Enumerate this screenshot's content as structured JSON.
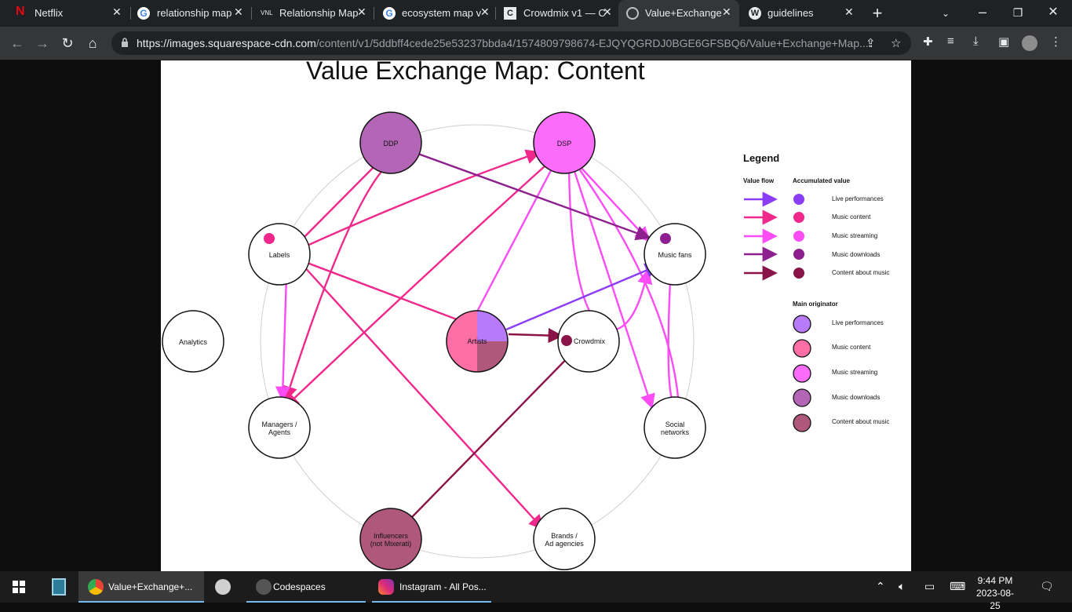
{
  "tabs": [
    {
      "title": "Netflix",
      "icon": "netflix-icon"
    },
    {
      "title": "relationship map",
      "icon": "google-icon"
    },
    {
      "title": "Relationship Map",
      "icon": "vnl-icon",
      "prefix": "VNL"
    },
    {
      "title": "ecosystem map v",
      "icon": "google-icon"
    },
    {
      "title": "Crowdmix v1 — C",
      "icon": "crowdmix-icon"
    },
    {
      "title": "Value+Exchange",
      "icon": "globe-icon",
      "active": true
    },
    {
      "title": "guidelines",
      "icon": "wordpress-icon"
    }
  ],
  "address": {
    "domain": "https://images.squarespace-cdn.com",
    "path": "/content/v1/5ddbff4cede25e53237bbda4/1574809798674-EJQYQGRDJ0BGE6GFSBQ6/Value+Exchange+Map..."
  },
  "diagram": {
    "title": "Value Exchange Map: Content",
    "nodes": {
      "ddp": "DDP",
      "dsp": "DSP",
      "labels": "Labels",
      "music_fans": "Music fans",
      "analytics": "Analytics",
      "artists": "Artists",
      "crowdmix": "Crowdmix",
      "managers_1": "Managers /",
      "managers_2": "Agents",
      "social_1": "Social",
      "social_2": "networks",
      "influencers_1": "Influencers",
      "influencers_2": "(not Mixerati)",
      "brands_1": "Brands /",
      "brands_2": "Ad agencies"
    },
    "colors": {
      "live": "#8b3cf7",
      "content": "#f0288c",
      "streaming": "#fb4cf5",
      "downloads": "#8e1f8e",
      "about": "#8a1448",
      "orig_live": "#b77af9",
      "orig_content": "#fb6fa6",
      "orig_streaming": "#fc6cfb",
      "orig_downloads": "#b266b5",
      "orig_about": "#b0587c"
    }
  },
  "legend": {
    "title": "Legend",
    "value_flow": "Value flow",
    "accumulated": "Accumulated value",
    "main_originator": "Main originator",
    "items": [
      "Live performances",
      "Music content",
      "Music streaming",
      "Music downloads",
      "Content about music"
    ]
  },
  "taskbar": {
    "items": [
      {
        "label": "Value+Exchange+...",
        "icon": "chrome-icon"
      },
      {
        "label": "Codespaces",
        "icon": "codespaces-icon"
      },
      {
        "label": "Instagram - All Pos...",
        "icon": "instagram-icon"
      }
    ],
    "time": "9:44 PM",
    "date": "2023-08-25"
  }
}
